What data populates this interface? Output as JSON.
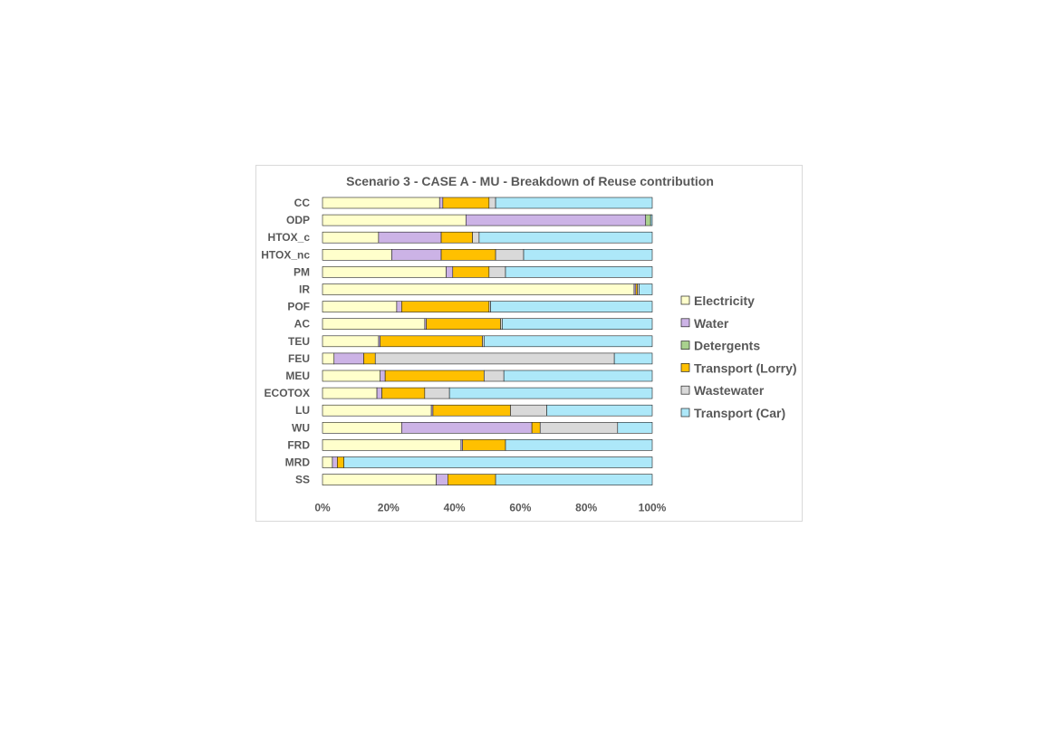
{
  "chart_data": {
    "type": "bar",
    "orientation": "horizontal",
    "stacked": "percent",
    "title": "Scenario 3 - CASE A - MU - Breakdown of Reuse contribution",
    "xlabel": "",
    "ylabel": "",
    "xlim": [
      0,
      100
    ],
    "x_ticks": [
      "0%",
      "20%",
      "40%",
      "60%",
      "80%",
      "100%"
    ],
    "grid": false,
    "legend_position": "right",
    "categories": [
      "CC",
      "ODP",
      "HTOX_c",
      "HTOX_nc",
      "PM",
      "IR",
      "POF",
      "AC",
      "TEU",
      "FEU",
      "MEU",
      "ECOTOX",
      "LU",
      "WU",
      "FRD",
      "MRD",
      "SS"
    ],
    "series": [
      {
        "name": "Electricity",
        "color": "#FFFFCC",
        "values": [
          35.5,
          43.5,
          17,
          21,
          37.5,
          94.5,
          22.5,
          31,
          17,
          3.5,
          17.5,
          16.5,
          33,
          24,
          42,
          3,
          34.5
        ]
      },
      {
        "name": "Water",
        "color": "#CCB3E6",
        "values": [
          1,
          54.5,
          19,
          15,
          2,
          0.5,
          1.5,
          0.5,
          0.5,
          9,
          1.5,
          1.5,
          0.5,
          39.5,
          0.5,
          1.5,
          3.5
        ]
      },
      {
        "name": "Detergents",
        "color": "#A9D18E",
        "values": [
          0,
          1.5,
          0,
          0,
          0,
          0,
          0,
          0,
          0,
          0,
          0,
          0,
          0,
          0,
          0,
          0,
          0
        ]
      },
      {
        "name": "Transport (Lorry)",
        "color": "#FFC000",
        "values": [
          14,
          0,
          9.5,
          16.5,
          11,
          0.5,
          26.5,
          22.5,
          31,
          3.5,
          30,
          13,
          23.5,
          2.5,
          13,
          2,
          14.5
        ]
      },
      {
        "name": "Wastewater",
        "color": "#D9D9D9",
        "values": [
          2,
          0,
          2,
          8.5,
          5,
          0.5,
          0.5,
          0.5,
          0.5,
          72.5,
          6,
          7.5,
          11,
          23.5,
          0,
          0,
          0
        ]
      },
      {
        "name": "Transport (Car)",
        "color": "#ADE8F9",
        "values": [
          47.5,
          0.5,
          52.5,
          39,
          44.5,
          4,
          49,
          45.5,
          51,
          11.5,
          45,
          61.5,
          32,
          10.5,
          44.5,
          93.5,
          47.5
        ]
      }
    ]
  }
}
